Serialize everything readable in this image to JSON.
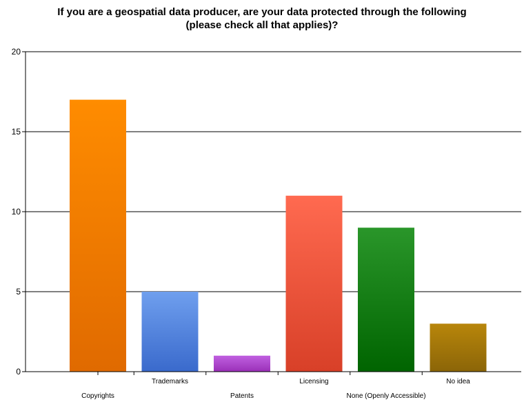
{
  "chart_data": {
    "type": "bar",
    "title_lines": [
      "If you are a geospatial data producer, are your data protected through the following",
      "(please check all that applies)?"
    ],
    "categories": [
      "Copyrights",
      "Trademarks",
      "Patents",
      "Licensing",
      "None (Openly Accessible)",
      "No idea"
    ],
    "values": [
      17,
      5,
      1,
      11,
      9,
      3
    ],
    "colors_top": [
      "#ff8c00",
      "#6f9fee",
      "#c060e0",
      "#ff6a50",
      "#2a962a",
      "#b8860b"
    ],
    "colors_bottom": [
      "#e06a00",
      "#3a6acc",
      "#9a30b8",
      "#d84028",
      "#006400",
      "#8b6508"
    ],
    "ylim": [
      0,
      20
    ],
    "yticks": [
      "0",
      "5",
      "10",
      "15",
      "20"
    ],
    "grid": true,
    "xlabel": "",
    "ylabel": ""
  }
}
